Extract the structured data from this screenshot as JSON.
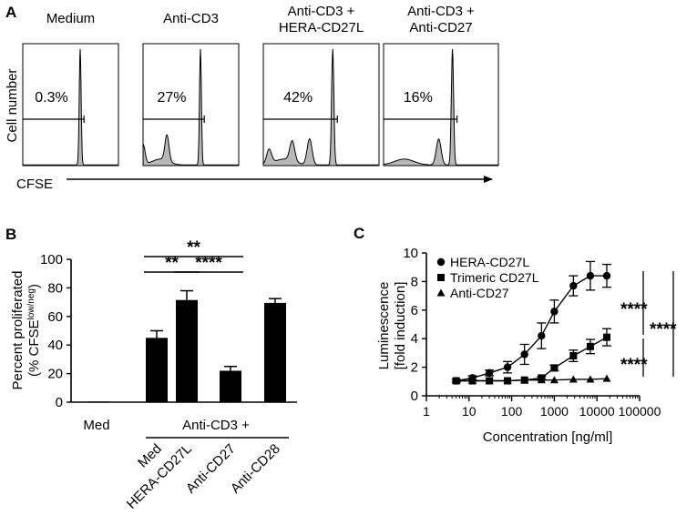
{
  "panel_a": {
    "letter": "A",
    "ylabel": "Cell number",
    "xlabel": "CFSE",
    "chart_data": {
      "type": "histogram",
      "panels": [
        {
          "title": [
            "Medium"
          ],
          "percent_label": "0.3%",
          "gate_pct": 0.3,
          "division_peaks": []
        },
        {
          "title": [
            "Anti-CD3"
          ],
          "percent_label": "27%",
          "gate_pct": 27,
          "division_peaks": [
            0.35,
            0.6
          ]
        },
        {
          "title": [
            "Anti-CD3 +",
            "HERA-CD27L"
          ],
          "percent_label": "42%",
          "gate_pct": 42,
          "division_peaks": [
            0.2,
            0.35,
            0.55
          ]
        },
        {
          "title": [
            "Anti-CD3 +",
            "Anti-CD27"
          ],
          "percent_label": "16%",
          "gate_pct": 16,
          "division_peaks": [
            0.12
          ]
        }
      ]
    }
  },
  "panel_b": {
    "letter": "B",
    "ylabel_line1": "Percent proliferated",
    "ylabel_line2_prefix": "(% CFSE",
    "ylabel_line2_sup": "low/neg",
    "ylabel_line2_suffix": ")",
    "group_label_med": "Med",
    "group_label_anticd3": "Anti-CD3 +",
    "chart_data": {
      "type": "bar",
      "categories": [
        "Med",
        "Med",
        "HERA-CD27L",
        "Anti-CD27",
        "Anti-CD28"
      ],
      "tick_labels": [
        "Med",
        "HERA-CD27L",
        "Anti-CD27",
        "Anti-CD28"
      ],
      "values": [
        0.5,
        45,
        71.5,
        22,
        69.5
      ],
      "errors": [
        0.3,
        5,
        6.5,
        3,
        3
      ],
      "ylim": [
        0,
        100
      ],
      "yticks": [
        0,
        20,
        40,
        60,
        80,
        100
      ],
      "significance": [
        {
          "from": 1,
          "to": 2,
          "label": "**"
        },
        {
          "from": 2,
          "to": 3,
          "label": "****"
        },
        {
          "from": 1,
          "to": 3,
          "label": "**"
        }
      ]
    }
  },
  "panel_c": {
    "letter": "C",
    "ylabel_line1": "Luminescence",
    "ylabel_line2": "[fold induction]",
    "xlabel": "Concentration [ng/ml]",
    "sig_labels": [
      "****",
      "****",
      "****"
    ],
    "chart_data": {
      "type": "line",
      "xscale": "log",
      "xlim": [
        1,
        100000
      ],
      "ylim": [
        0,
        10
      ],
      "xticks": [
        1,
        10,
        100,
        1000,
        10000,
        100000
      ],
      "yticks": [
        0,
        2,
        4,
        6,
        8,
        10
      ],
      "series": [
        {
          "name": "HERA-CD27L",
          "marker": "circle",
          "x": [
            5,
            12,
            30,
            80,
            200,
            500,
            1000,
            2800,
            7000,
            17000
          ],
          "y": [
            1.05,
            1.25,
            1.6,
            2.0,
            2.9,
            4.2,
            5.9,
            7.7,
            8.4,
            8.4
          ],
          "err": [
            0.1,
            0.15,
            0.2,
            0.4,
            0.7,
            0.9,
            0.8,
            0.7,
            1.0,
            0.8
          ]
        },
        {
          "name": "Trimeric CD27L",
          "marker": "square",
          "x": [
            5,
            12,
            30,
            80,
            200,
            500,
            1000,
            2800,
            7000,
            17000
          ],
          "y": [
            1.05,
            1.05,
            1.05,
            1.05,
            1.1,
            1.25,
            1.95,
            2.8,
            3.45,
            4.1
          ],
          "err": [
            0.05,
            0.05,
            0.05,
            0.05,
            0.05,
            0.1,
            0.2,
            0.4,
            0.5,
            0.6
          ]
        },
        {
          "name": "Anti-CD27",
          "marker": "triangle",
          "x": [
            5,
            12,
            30,
            80,
            200,
            500,
            1000,
            2800,
            7000,
            17000
          ],
          "y": [
            1.05,
            1.05,
            1.05,
            1.05,
            1.1,
            1.1,
            1.1,
            1.15,
            1.15,
            1.2
          ],
          "err": [
            0.05,
            0.05,
            0.05,
            0.05,
            0.05,
            0.05,
            0.05,
            0.05,
            0.05,
            0.05
          ]
        }
      ]
    }
  }
}
